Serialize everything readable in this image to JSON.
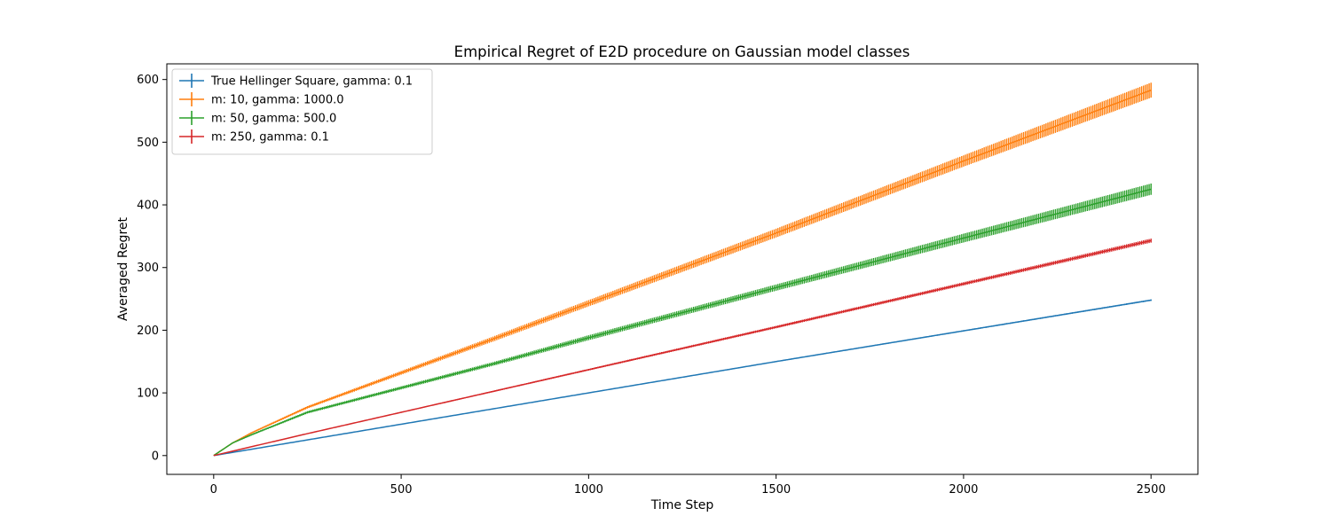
{
  "chart_data": {
    "type": "line",
    "title": "Empirical Regret of E2D procedure on Gaussian model classes",
    "xlabel": "Time Step",
    "ylabel": "Averaged Regret",
    "xlim": [
      -125,
      2625
    ],
    "ylim": [
      -30,
      625
    ],
    "xticks": [
      0,
      500,
      1000,
      1500,
      2000,
      2500
    ],
    "yticks": [
      0,
      100,
      200,
      300,
      400,
      500,
      600
    ],
    "grid": false,
    "legend_position": "top-left",
    "series": [
      {
        "name": "True Hellinger Square, gamma: 0.1",
        "color": "#1f77b4",
        "x": [
          0,
          500,
          1000,
          1500,
          2000,
          2500
        ],
        "y": [
          0,
          50,
          100,
          150,
          199,
          248
        ],
        "y_err": [
          0,
          0.3,
          0.6,
          0.8,
          1.0,
          1.2
        ]
      },
      {
        "name": "m: 10, gamma: 1000.0",
        "color": "#ff7f0e",
        "x": [
          0,
          50,
          100,
          250,
          500,
          750,
          1000,
          1500,
          2000,
          2500
        ],
        "y": [
          0,
          20,
          36,
          77,
          132,
          187,
          243,
          355,
          470,
          583
        ],
        "y_err": [
          0,
          0.6,
          1.2,
          2,
          3,
          4,
          5,
          7,
          9,
          12
        ]
      },
      {
        "name": "m: 50, gamma: 500.0",
        "color": "#2ca02c",
        "x": [
          0,
          50,
          100,
          250,
          500,
          750,
          1000,
          1500,
          2000,
          2500
        ],
        "y": [
          0,
          20,
          33,
          69,
          108,
          147,
          188,
          268,
          347,
          425
        ],
        "y_err": [
          0,
          0.6,
          1.2,
          2,
          2.5,
          3,
          4,
          5,
          7,
          9
        ]
      },
      {
        "name": "m: 250, gamma: 0.1",
        "color": "#d62728",
        "x": [
          0,
          250,
          500,
          750,
          1000,
          1500,
          2000,
          2500
        ],
        "y": [
          0,
          35,
          69,
          103,
          137,
          205,
          274,
          343
        ],
        "y_err": [
          0,
          0.5,
          0.8,
          1.1,
          1.4,
          2,
          2.6,
          3.2
        ]
      }
    ]
  }
}
